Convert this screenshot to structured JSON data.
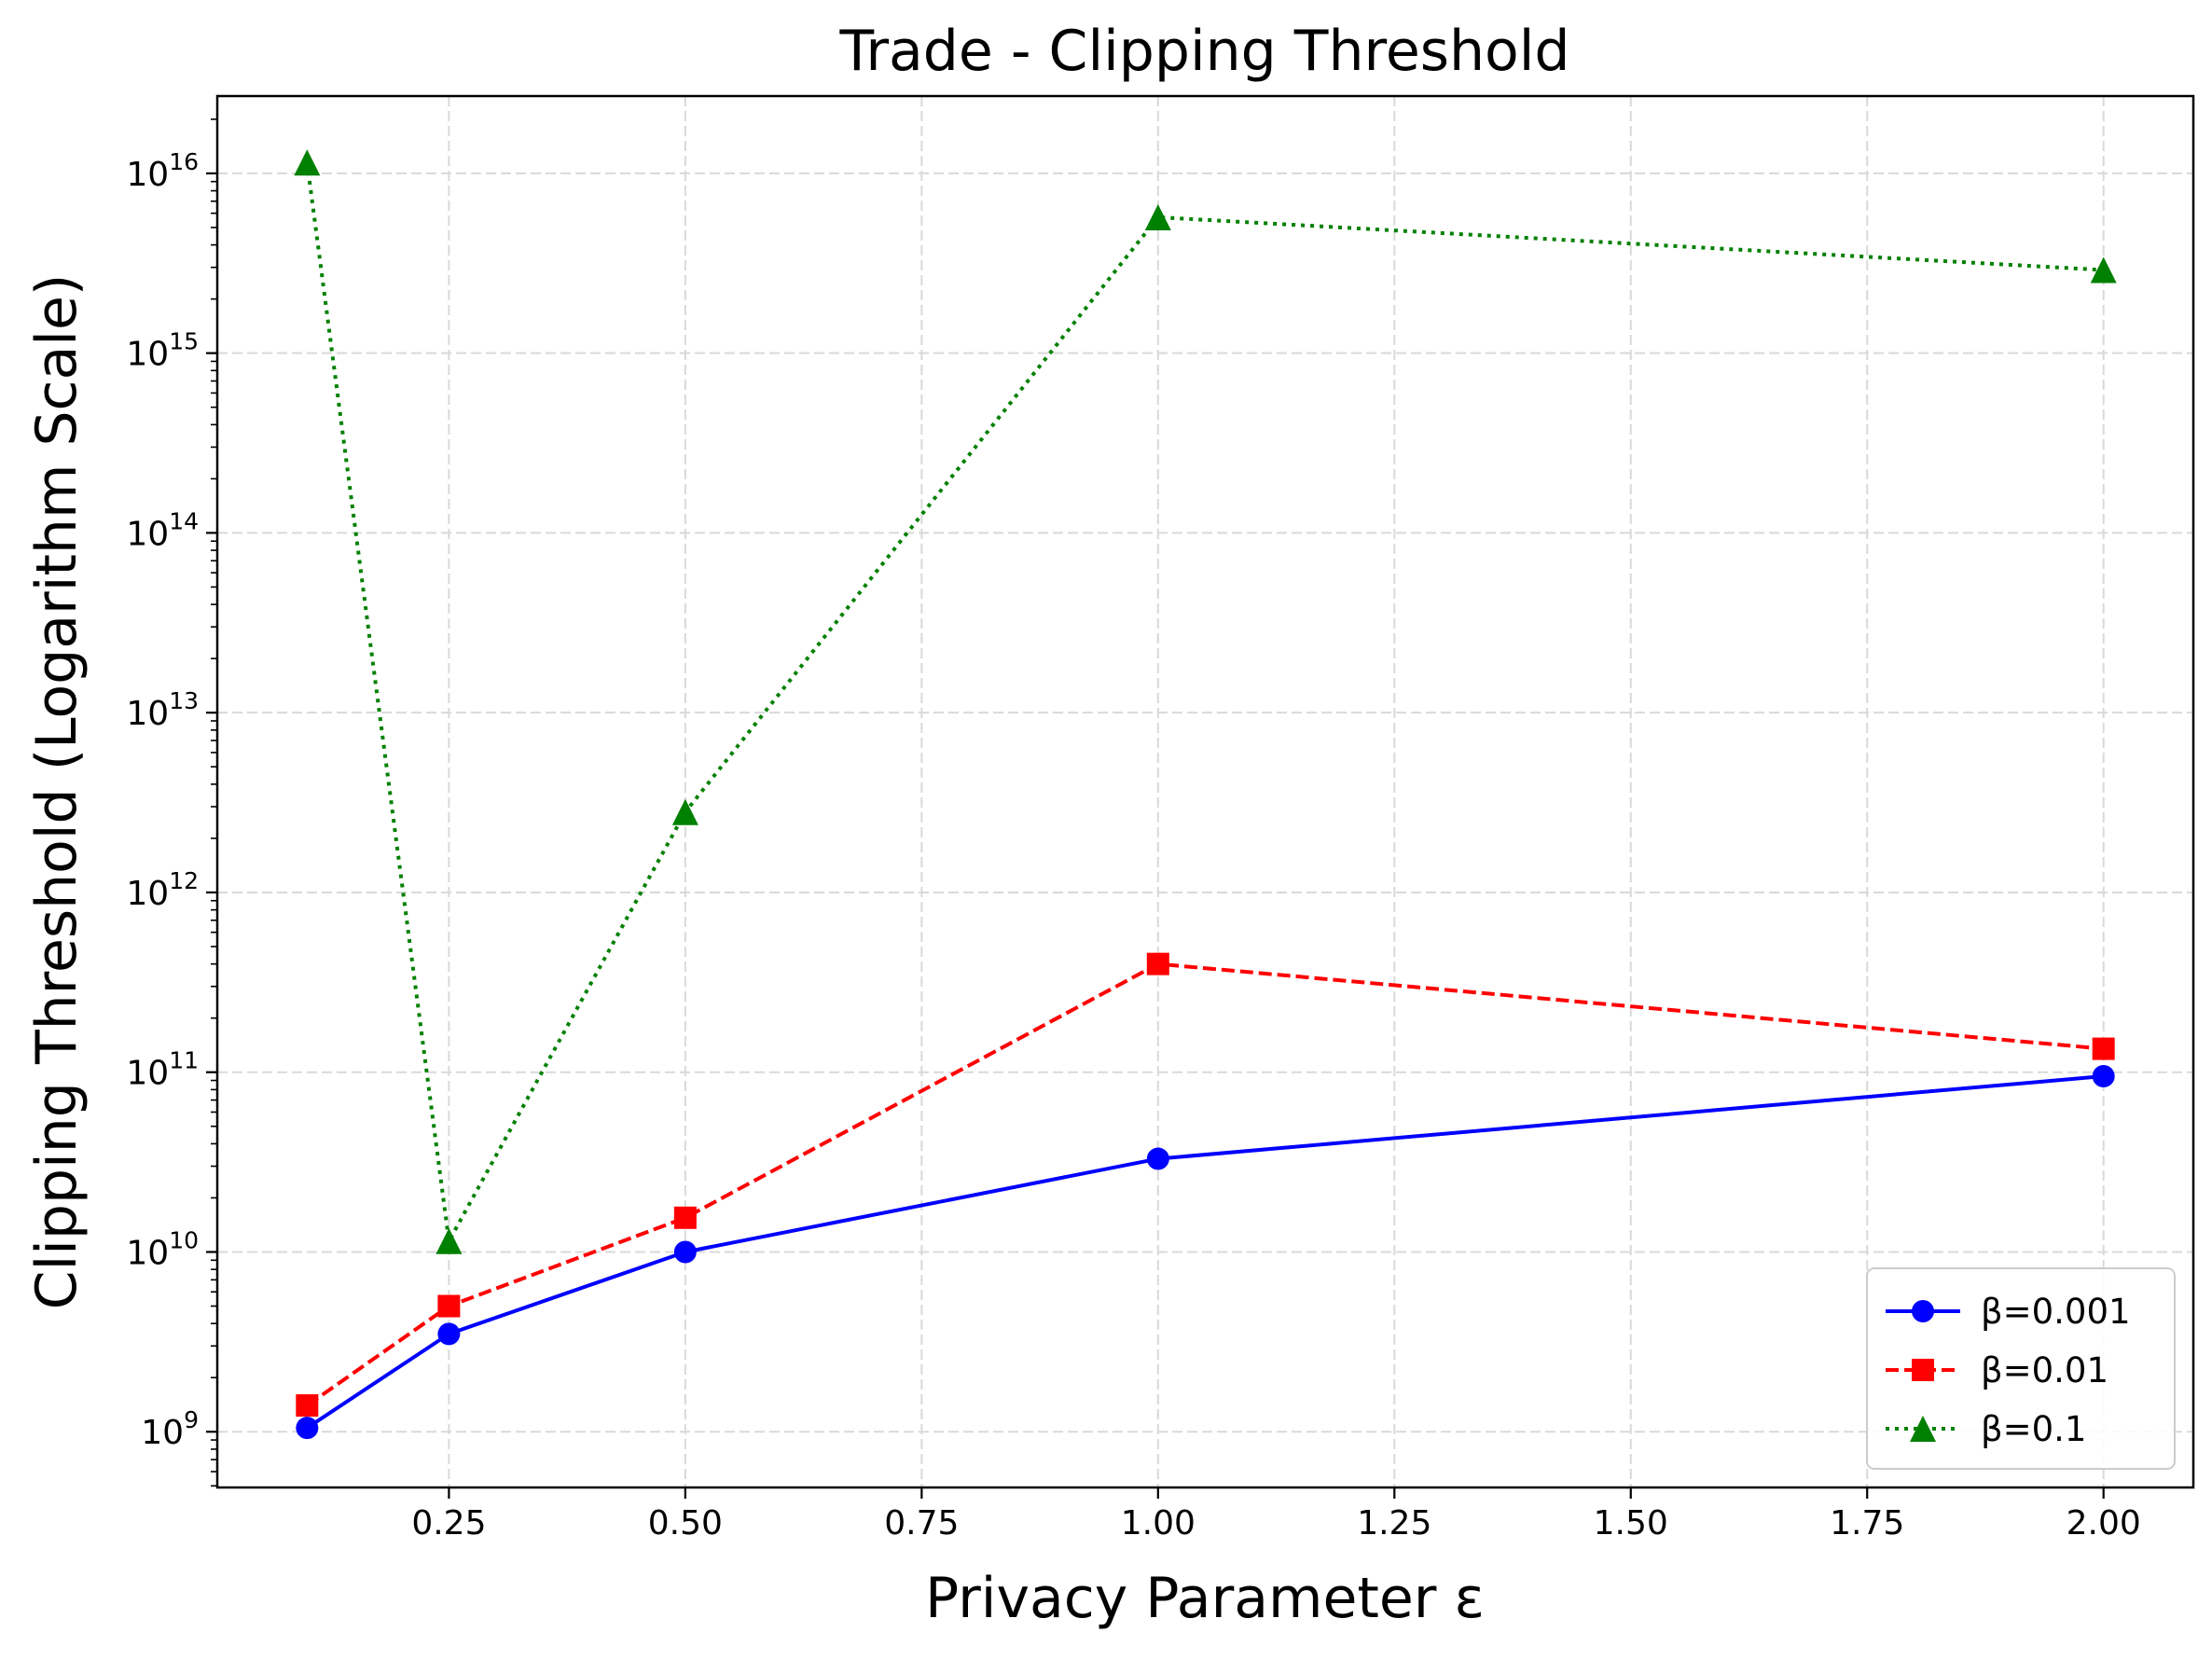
{
  "chart_data": {
    "type": "line",
    "title": "Trade - Clipping Threshold",
    "xlabel": "Privacy Parameter ε",
    "ylabel": "Clipping Threshold (Logarithm Scale)",
    "x": [
      0.1,
      0.25,
      0.5,
      1.0,
      2.0
    ],
    "xlim": [
      0.005,
      2.095
    ],
    "x_ticks": [
      {
        "value": 0.25,
        "label": "0.25"
      },
      {
        "value": 0.5,
        "label": "0.50"
      },
      {
        "value": 0.75,
        "label": "0.75"
      },
      {
        "value": 1.0,
        "label": "1.00"
      },
      {
        "value": 1.25,
        "label": "1.25"
      },
      {
        "value": 1.5,
        "label": "1.50"
      },
      {
        "value": 1.75,
        "label": "1.75"
      },
      {
        "value": 2.0,
        "label": "2.00"
      }
    ],
    "yscale": "log",
    "ylim_log10": [
      8.69,
      16.43
    ],
    "y_ticks": [
      {
        "exp": 9,
        "base": "10",
        "sup": "9"
      },
      {
        "exp": 10,
        "base": "10",
        "sup": "10"
      },
      {
        "exp": 11,
        "base": "10",
        "sup": "11"
      },
      {
        "exp": 12,
        "base": "10",
        "sup": "12"
      },
      {
        "exp": 13,
        "base": "10",
        "sup": "13"
      },
      {
        "exp": 14,
        "base": "10",
        "sup": "14"
      },
      {
        "exp": 15,
        "base": "10",
        "sup": "15"
      },
      {
        "exp": 16,
        "base": "10",
        "sup": "16"
      }
    ],
    "grid": true,
    "legend_position": "lower right",
    "series": [
      {
        "name": "β=0.001",
        "color": "#0000ff",
        "marker": "circle",
        "linestyle": "solid",
        "values": [
          1050000000.0,
          3500000000.0,
          10000000000.0,
          33000000000.0,
          95000000000.0
        ]
      },
      {
        "name": "β=0.01",
        "color": "#ff0000",
        "marker": "square",
        "linestyle": "dashed",
        "values": [
          1400000000.0,
          5000000000.0,
          15500000000.0,
          400000000000.0,
          135000000000.0
        ]
      },
      {
        "name": "β=0.1",
        "color": "#008000",
        "marker": "triangle",
        "linestyle": "dotted",
        "values": [
          1.15e+16,
          11500000000.0,
          2800000000000.0,
          5700000000000000.0,
          2900000000000000.0
        ]
      }
    ]
  }
}
